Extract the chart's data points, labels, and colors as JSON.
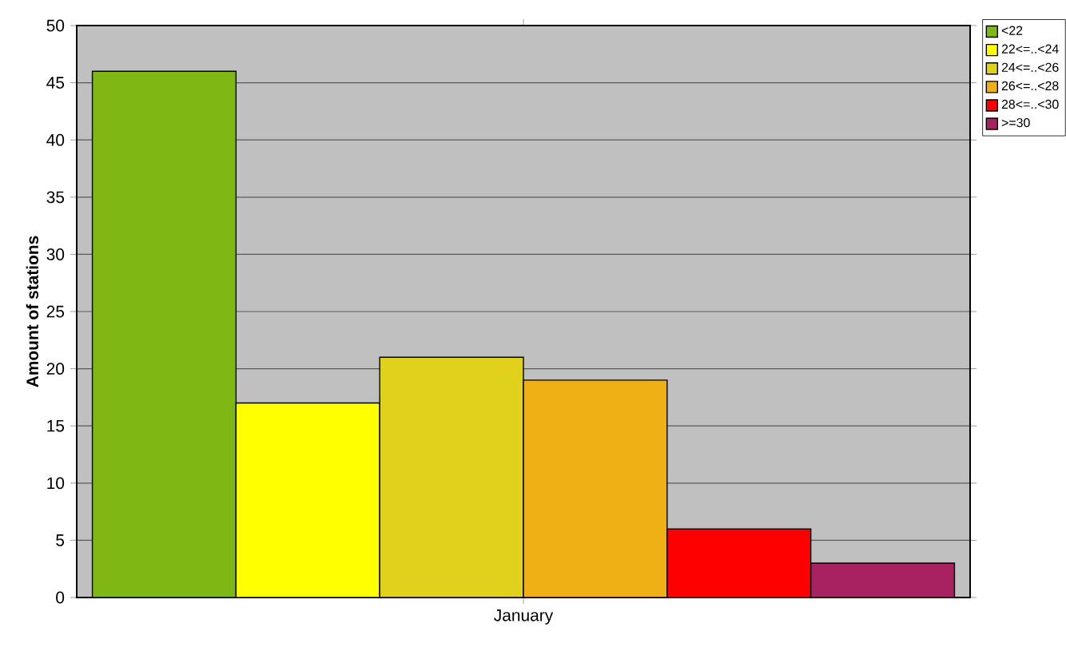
{
  "chart_data": {
    "type": "bar",
    "ylabel": "Amount of stations",
    "categories": [
      "January"
    ],
    "series": [
      {
        "name": "<22",
        "color": "#7fb715",
        "values": [
          46
        ]
      },
      {
        "name": "22<=..<24",
        "color": "#ffff00",
        "values": [
          17
        ]
      },
      {
        "name": "24<=..<26",
        "color": "#e0d21c",
        "values": [
          21
        ]
      },
      {
        "name": "26<=..<28",
        "color": "#eeb015",
        "values": [
          19
        ]
      },
      {
        "name": "28<=..<30",
        "color": "#ff0000",
        "values": [
          6
        ]
      },
      {
        "name": ">=30",
        "color": "#a82262",
        "values": [
          3
        ]
      }
    ],
    "ylim": [
      0,
      50
    ],
    "yticks": [
      0,
      5,
      10,
      15,
      20,
      25,
      30,
      35,
      40,
      45,
      50
    ],
    "grid": "y",
    "legend": "top right"
  }
}
